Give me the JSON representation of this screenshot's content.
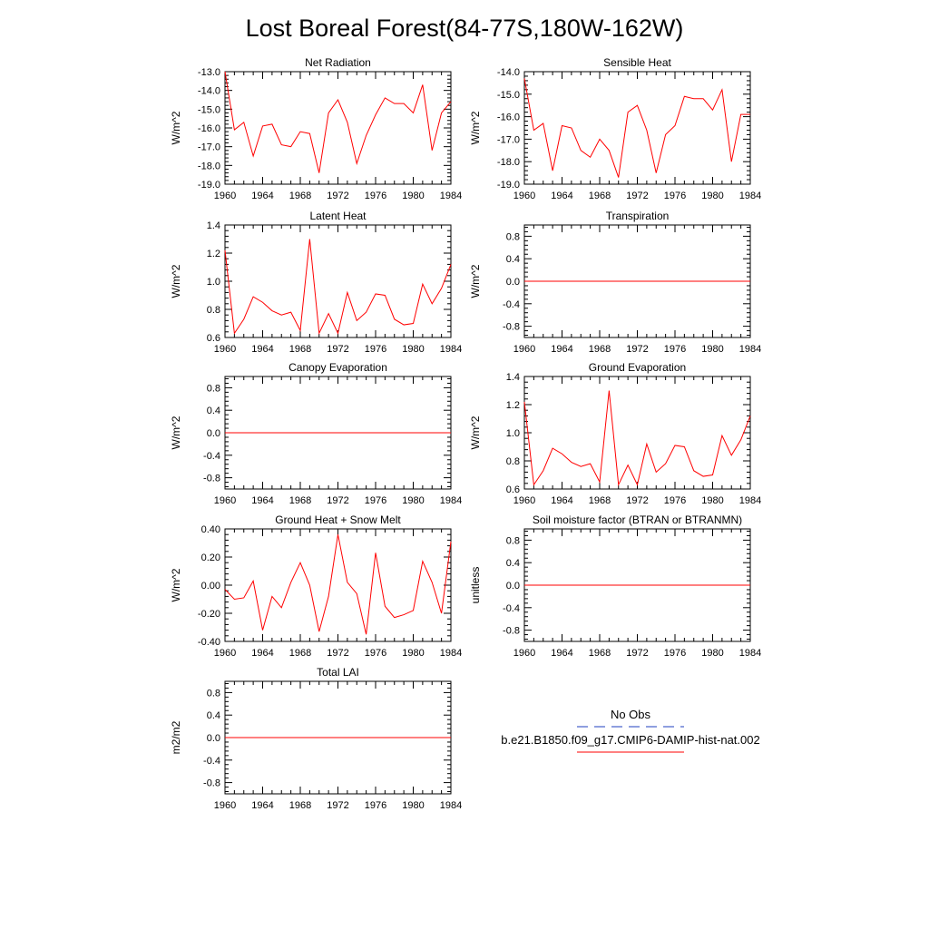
{
  "title": "Lost Boreal Forest(84-77S,180W-162W)",
  "legend": {
    "obs_label": "No Obs",
    "model_label": "b.e21.B1850.f09_g17.CMIP6-DAMIP-hist-nat.002",
    "obs_color": "#1f3fbf",
    "model_color": "#ff0000"
  },
  "chart_data": [
    {
      "type": "line",
      "title": "Net Radiation",
      "ylabel": "W/m^2",
      "xlim": [
        1960,
        1984
      ],
      "ylim": [
        -19.0,
        -13.0
      ],
      "yticks": [
        "-19.0",
        "-18.0",
        "-17.0",
        "-16.0",
        "-15.0",
        "-14.0",
        "-13.0"
      ],
      "xticks": [
        "1960",
        "1964",
        "1968",
        "1972",
        "1976",
        "1980",
        "1984"
      ],
      "x": [
        1960,
        1961,
        1962,
        1963,
        1964,
        1965,
        1966,
        1967,
        1968,
        1969,
        1970,
        1971,
        1972,
        1973,
        1974,
        1975,
        1976,
        1977,
        1978,
        1979,
        1980,
        1981,
        1982,
        1983,
        1984
      ],
      "series": [
        {
          "values": [
            -13.0,
            -16.1,
            -15.7,
            -17.5,
            -15.9,
            -15.8,
            -16.9,
            -17.0,
            -16.2,
            -16.3,
            -18.4,
            -15.2,
            -14.5,
            -15.7,
            -17.9,
            -16.4,
            -15.3,
            -14.4,
            -14.7,
            -14.7,
            -15.2,
            -13.7,
            -17.2,
            -15.2,
            -14.6
          ]
        }
      ]
    },
    {
      "type": "line",
      "title": "Sensible Heat",
      "ylabel": "W/m^2",
      "xlim": [
        1960,
        1984
      ],
      "ylim": [
        -19.0,
        -14.0
      ],
      "yticks": [
        "-19.0",
        "-18.0",
        "-17.0",
        "-16.0",
        "-15.0",
        "-14.0"
      ],
      "xticks": [
        "1960",
        "1964",
        "1968",
        "1972",
        "1976",
        "1980",
        "1984"
      ],
      "x": [
        1960,
        1961,
        1962,
        1963,
        1964,
        1965,
        1966,
        1967,
        1968,
        1969,
        1970,
        1971,
        1972,
        1973,
        1974,
        1975,
        1976,
        1977,
        1978,
        1979,
        1980,
        1981,
        1982,
        1983,
        1984
      ],
      "series": [
        {
          "values": [
            -14.3,
            -16.6,
            -16.3,
            -18.4,
            -16.4,
            -16.5,
            -17.5,
            -17.8,
            -17.0,
            -17.5,
            -18.7,
            -15.8,
            -15.5,
            -16.6,
            -18.5,
            -16.8,
            -16.4,
            -15.1,
            -15.2,
            -15.2,
            -15.7,
            -14.8,
            -18.0,
            -15.9,
            -15.9
          ]
        }
      ]
    },
    {
      "type": "line",
      "title": "Latent Heat",
      "ylabel": "W/m^2",
      "xlim": [
        1960,
        1984
      ],
      "ylim": [
        0.6,
        1.4
      ],
      "yticks": [
        "0.6",
        "0.8",
        "1.0",
        "1.2",
        "1.4"
      ],
      "xticks": [
        "1960",
        "1964",
        "1968",
        "1972",
        "1976",
        "1980",
        "1984"
      ],
      "x": [
        1960,
        1961,
        1962,
        1963,
        1964,
        1965,
        1966,
        1967,
        1968,
        1969,
        1970,
        1971,
        1972,
        1973,
        1974,
        1975,
        1976,
        1977,
        1978,
        1979,
        1980,
        1981,
        1982,
        1983,
        1984
      ],
      "series": [
        {
          "values": [
            1.22,
            0.63,
            0.73,
            0.89,
            0.85,
            0.79,
            0.76,
            0.78,
            0.65,
            1.3,
            0.63,
            0.77,
            0.63,
            0.92,
            0.72,
            0.78,
            0.91,
            0.9,
            0.73,
            0.69,
            0.7,
            0.98,
            0.84,
            0.95,
            1.12
          ]
        }
      ]
    },
    {
      "type": "line",
      "title": "Transpiration",
      "ylabel": "W/m^2",
      "xlim": [
        1960,
        1984
      ],
      "ylim": [
        -1.0,
        1.0
      ],
      "yticks": [
        "-0.8",
        "-0.4",
        "0.0",
        "0.4",
        "0.8"
      ],
      "yticks_at": [
        -0.8,
        -0.4,
        0.0,
        0.4,
        0.8
      ],
      "xticks": [
        "1960",
        "1964",
        "1968",
        "1972",
        "1976",
        "1980",
        "1984"
      ],
      "x": [
        1960,
        1984
      ],
      "series": [
        {
          "values": [
            0.0,
            0.0
          ]
        }
      ]
    },
    {
      "type": "line",
      "title": "Canopy Evaporation",
      "ylabel": "W/m^2",
      "xlim": [
        1960,
        1984
      ],
      "ylim": [
        -1.0,
        1.0
      ],
      "yticks": [
        "-0.8",
        "-0.4",
        "0.0",
        "0.4",
        "0.8"
      ],
      "yticks_at": [
        -0.8,
        -0.4,
        0.0,
        0.4,
        0.8
      ],
      "xticks": [
        "1960",
        "1964",
        "1968",
        "1972",
        "1976",
        "1980",
        "1984"
      ],
      "x": [
        1960,
        1984
      ],
      "series": [
        {
          "values": [
            0.0,
            0.0
          ]
        }
      ]
    },
    {
      "type": "line",
      "title": "Ground Evaporation",
      "ylabel": "W/m^2",
      "xlim": [
        1960,
        1984
      ],
      "ylim": [
        0.6,
        1.4
      ],
      "yticks": [
        "0.6",
        "0.8",
        "1.0",
        "1.2",
        "1.4"
      ],
      "xticks": [
        "1960",
        "1964",
        "1968",
        "1972",
        "1976",
        "1980",
        "1984"
      ],
      "x": [
        1960,
        1961,
        1962,
        1963,
        1964,
        1965,
        1966,
        1967,
        1968,
        1969,
        1970,
        1971,
        1972,
        1973,
        1974,
        1975,
        1976,
        1977,
        1978,
        1979,
        1980,
        1981,
        1982,
        1983,
        1984
      ],
      "series": [
        {
          "values": [
            1.22,
            0.63,
            0.73,
            0.89,
            0.85,
            0.79,
            0.76,
            0.78,
            0.65,
            1.3,
            0.63,
            0.77,
            0.63,
            0.92,
            0.72,
            0.78,
            0.91,
            0.9,
            0.73,
            0.69,
            0.7,
            0.98,
            0.84,
            0.95,
            1.12
          ]
        }
      ]
    },
    {
      "type": "line",
      "title": "Ground Heat + Snow Melt",
      "ylabel": "W/m^2",
      "xlim": [
        1960,
        1984
      ],
      "ylim": [
        -0.4,
        0.4
      ],
      "yticks": [
        "-0.40",
        "-0.20",
        "0.00",
        "0.20",
        "0.40"
      ],
      "xticks": [
        "1960",
        "1964",
        "1968",
        "1972",
        "1976",
        "1980",
        "1984"
      ],
      "x": [
        1960,
        1961,
        1962,
        1963,
        1964,
        1965,
        1966,
        1967,
        1968,
        1969,
        1970,
        1971,
        1972,
        1973,
        1974,
        1975,
        1976,
        1977,
        1978,
        1979,
        1980,
        1981,
        1982,
        1983,
        1984
      ],
      "series": [
        {
          "values": [
            -0.03,
            -0.1,
            -0.09,
            0.03,
            -0.32,
            -0.08,
            -0.16,
            0.02,
            0.16,
            0.0,
            -0.33,
            -0.08,
            0.36,
            0.02,
            -0.06,
            -0.35,
            0.23,
            -0.15,
            -0.23,
            -0.21,
            -0.18,
            0.17,
            0.02,
            -0.2,
            0.31
          ]
        }
      ]
    },
    {
      "type": "line",
      "title": "Soil moisture factor (BTRAN or BTRANMN)",
      "ylabel": "unitless",
      "xlim": [
        1960,
        1984
      ],
      "ylim": [
        -1.0,
        1.0
      ],
      "yticks": [
        "-0.8",
        "-0.4",
        "0.0",
        "0.4",
        "0.8"
      ],
      "yticks_at": [
        -0.8,
        -0.4,
        0.0,
        0.4,
        0.8
      ],
      "xticks": [
        "1960",
        "1964",
        "1968",
        "1972",
        "1976",
        "1980",
        "1984"
      ],
      "x": [
        1960,
        1984
      ],
      "series": [
        {
          "values": [
            0.0,
            0.0
          ]
        }
      ]
    },
    {
      "type": "line",
      "title": "Total LAI",
      "ylabel": "m2/m2",
      "xlim": [
        1960,
        1984
      ],
      "ylim": [
        -1.0,
        1.0
      ],
      "yticks": [
        "-0.8",
        "-0.4",
        "0.0",
        "0.4",
        "0.8"
      ],
      "yticks_at": [
        -0.8,
        -0.4,
        0.0,
        0.4,
        0.8
      ],
      "xticks": [
        "1960",
        "1964",
        "1968",
        "1972",
        "1976",
        "1980",
        "1984"
      ],
      "x": [
        1960,
        1984
      ],
      "series": [
        {
          "values": [
            0.0,
            0.0
          ]
        }
      ]
    }
  ]
}
